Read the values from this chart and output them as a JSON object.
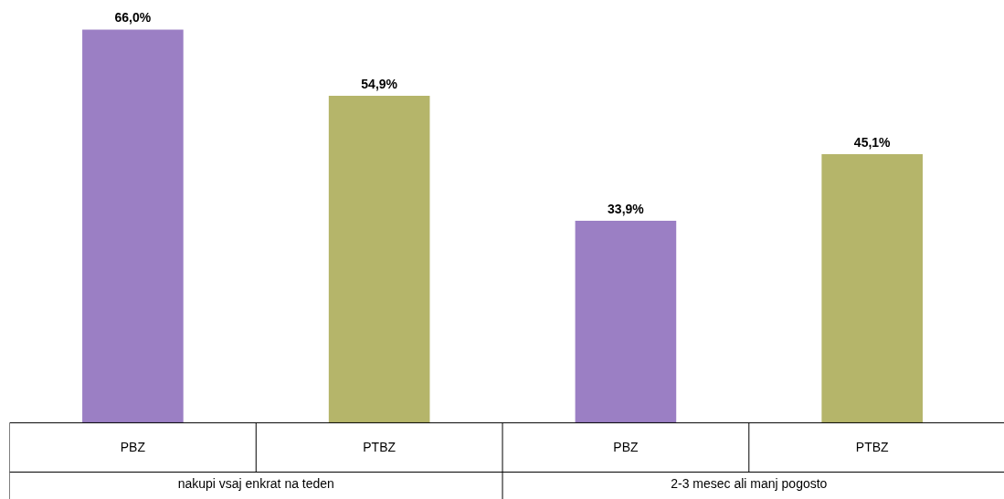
{
  "chart_data": {
    "type": "bar",
    "categories": [
      "nakupi vsaj enkrat na teden",
      "2-3 mesec ali manj pogosto"
    ],
    "series": [
      {
        "name": "PBZ",
        "color": "#9b7fc4",
        "values": [
          66.0,
          33.9
        ],
        "value_labels": [
          "66,0%",
          "33,9%"
        ]
      },
      {
        "name": "PTBZ",
        "color": "#b5b56a",
        "values": [
          54.9,
          45.1
        ],
        "value_labels": [
          "54,9%",
          "45,1%"
        ]
      }
    ]
  }
}
